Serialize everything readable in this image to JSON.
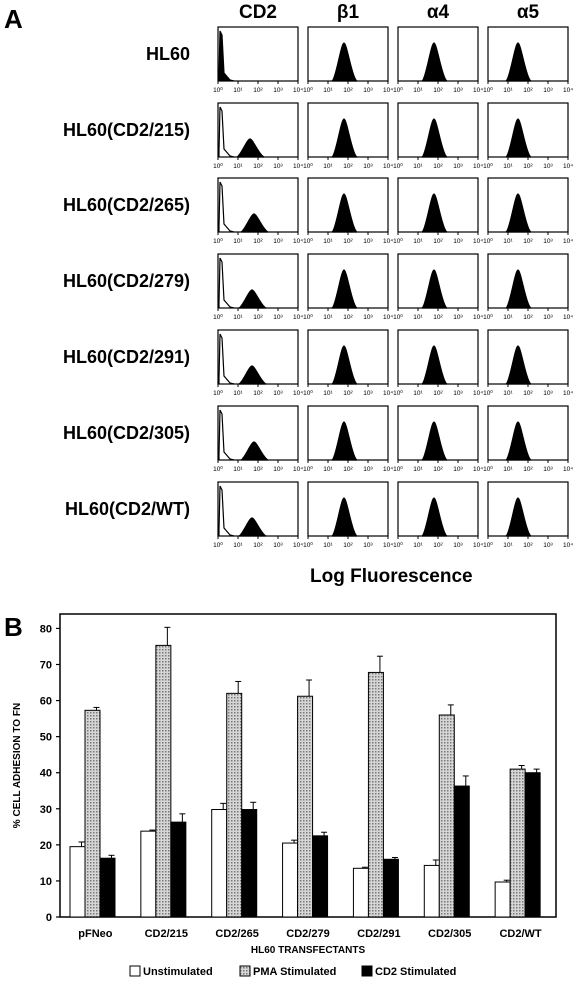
{
  "panels": {
    "a": "A",
    "b": "B"
  },
  "chart_data": [
    {
      "type": "histogram-grid",
      "columns": [
        "CD2",
        "β1",
        "α4",
        "α5"
      ],
      "rows": [
        "HL60",
        "HL60(CD2/215)",
        "HL60(CD2/265)",
        "HL60(CD2/279)",
        "HL60(CD2/291)",
        "HL60(CD2/305)",
        "HL60(CD2/WT)"
      ],
      "xticks": [
        "10⁰",
        "10¹",
        "10²",
        "10³",
        "10⁴"
      ],
      "xlabel": "Log Fluorescence",
      "xscale": "log",
      "xlim": [
        1,
        10000
      ],
      "peaks_log10": [
        [
          [
            0.1
          ],
          [
            1.8
          ],
          [
            1.8
          ],
          [
            1.5
          ]
        ],
        [
          [
            0.1,
            1.6
          ],
          [
            1.8
          ],
          [
            1.8
          ],
          [
            1.5
          ]
        ],
        [
          [
            0.1,
            1.8
          ],
          [
            1.8
          ],
          [
            1.8
          ],
          [
            1.5
          ]
        ],
        [
          [
            0.1,
            1.7
          ],
          [
            1.8
          ],
          [
            1.8
          ],
          [
            1.5
          ]
        ],
        [
          [
            0.1,
            1.7
          ],
          [
            1.8
          ],
          [
            1.8
          ],
          [
            1.5
          ]
        ],
        [
          [
            0.1,
            1.8
          ],
          [
            1.8
          ],
          [
            1.8
          ],
          [
            1.5
          ]
        ],
        [
          [
            0.1,
            1.7
          ],
          [
            1.8
          ],
          [
            1.8
          ],
          [
            1.5
          ]
        ]
      ]
    },
    {
      "type": "bar",
      "categories": [
        "pFNeo",
        "CD2/215",
        "CD2/265",
        "CD2/279",
        "CD2/291",
        "CD2/305",
        "CD2/WT"
      ],
      "series": [
        {
          "name": "Unstimulated",
          "values": [
            19.5,
            23.8,
            29.8,
            20.5,
            13.5,
            14.3,
            9.7
          ],
          "errors": [
            1.3,
            0.3,
            1.7,
            0.8,
            0.3,
            1.5,
            0.5
          ],
          "color": "#ffffff"
        },
        {
          "name": "PMA Stimulated",
          "values": [
            57.3,
            75.3,
            62,
            61.2,
            67.8,
            56,
            41
          ],
          "errors": [
            0.8,
            5,
            3.3,
            4.5,
            4.5,
            2.8,
            1
          ],
          "color": "#b5b5b5"
        },
        {
          "name": "CD2 Stimulated",
          "values": [
            16.3,
            26.3,
            29.8,
            22.5,
            16,
            36.3,
            40
          ],
          "errors": [
            0.8,
            2.3,
            2,
            1,
            0.5,
            2.8,
            1
          ],
          "color": "#000000"
        }
      ],
      "xlabel": "HL60 TRANSFECTANTS",
      "ylabel": "% CELL ADHESION TO FN",
      "ylim": [
        0,
        84
      ],
      "yticks": [
        0,
        10,
        20,
        30,
        40,
        50,
        60,
        70,
        80
      ],
      "legend": "bottom"
    }
  ]
}
